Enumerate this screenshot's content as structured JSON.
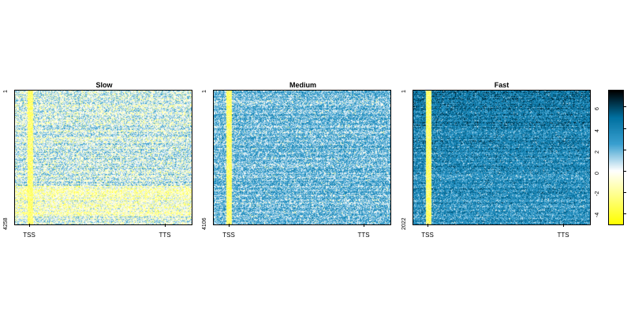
{
  "chart_data": {
    "type": "heatmap",
    "x_tick_labels": [
      "TSS",
      "TTS"
    ],
    "colorbar": {
      "range": [
        -5,
        7.5
      ],
      "ticks": [
        -4,
        -2,
        0,
        2,
        4,
        6
      ],
      "tick_labels": [
        "-4",
        "-2",
        "0",
        "2",
        "4",
        "6"
      ],
      "colormap": [
        "#ffff00",
        "#ffffff",
        "#3aa0d0",
        "#0070a0",
        "#000000"
      ]
    },
    "panels": [
      {
        "title": "Slow",
        "row_top_label": "1",
        "row_bottom_label": "4258",
        "mean_level": 0.6
      },
      {
        "title": "Medium",
        "row_top_label": "1",
        "row_bottom_label": "4106",
        "mean_level": 2.2
      },
      {
        "title": "Fast",
        "row_top_label": "1",
        "row_bottom_label": "2022",
        "mean_level": 3.4
      }
    ]
  }
}
